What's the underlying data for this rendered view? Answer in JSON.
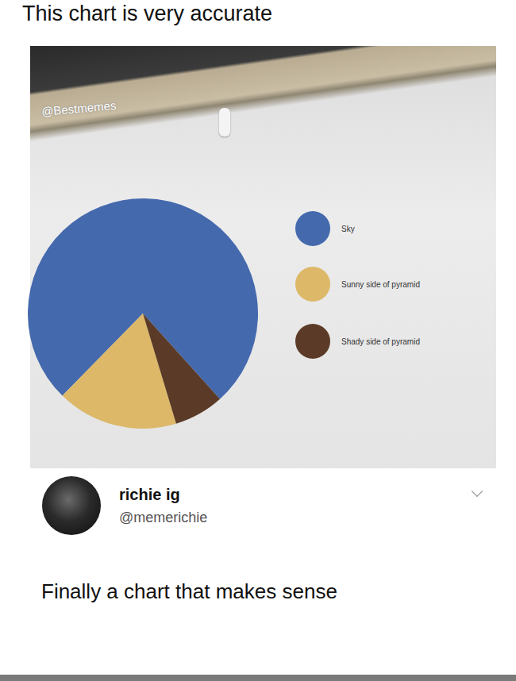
{
  "header": {
    "title": "This chart is very accurate"
  },
  "watermark": "@Bestmemes",
  "chart_data": {
    "type": "pie",
    "categories": [
      "Sky",
      "Sunny side of pyramid",
      "Shady side of pyramid"
    ],
    "values": [
      76,
      17,
      7
    ],
    "colors": [
      "#4469ad",
      "#dcb868",
      "#5b3b27"
    ]
  },
  "comment": {
    "name": "richie ig",
    "handle": "@memerichie",
    "text": "Finally a chart that makes sense"
  }
}
